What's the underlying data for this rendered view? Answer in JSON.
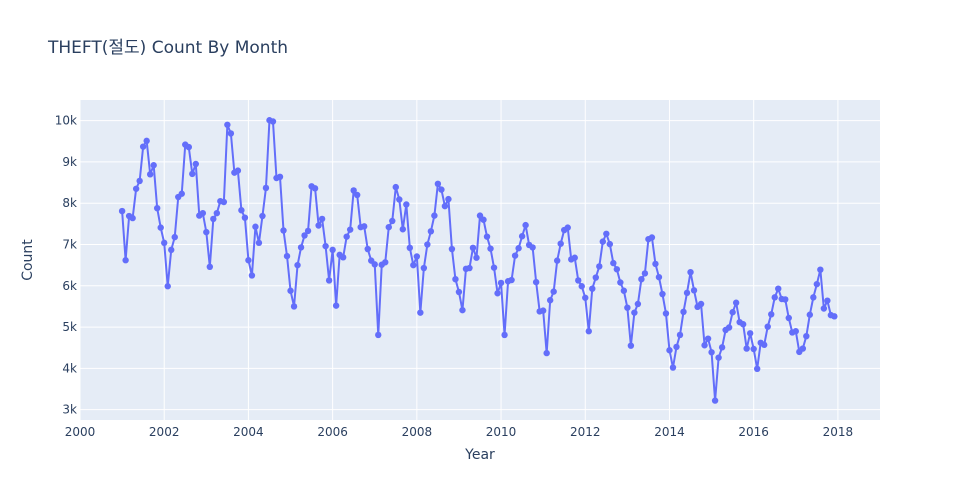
{
  "chart_data": {
    "type": "line",
    "title": "THEFT(절도) Count By Month",
    "xlabel": "Year",
    "ylabel": "Count",
    "x_ticks": [
      "2000",
      "2002",
      "2004",
      "2006",
      "2008",
      "2010",
      "2012",
      "2014",
      "2016",
      "2018"
    ],
    "y_ticks": [
      "3k",
      "4k",
      "5k",
      "6k",
      "7k",
      "8k",
      "9k",
      "10k"
    ],
    "xlim": [
      2000,
      2019
    ],
    "ylim": [
      2750,
      10500
    ],
    "grid": true,
    "mode": "lines+markers",
    "start": "2001-01",
    "series": [
      {
        "color": "#636efa",
        "values": [
          7810,
          6620,
          7690,
          7640,
          8350,
          8540,
          9370,
          9510,
          8700,
          8920,
          7880,
          7410,
          7040,
          5990,
          6870,
          7180,
          8150,
          8230,
          9420,
          9360,
          8710,
          8950,
          7700,
          7760,
          7300,
          6460,
          7620,
          7760,
          8050,
          8030,
          9900,
          9690,
          8740,
          8790,
          7830,
          7650,
          6620,
          6250,
          7430,
          7040,
          7690,
          8370,
          10010,
          9980,
          8610,
          8640,
          7340,
          6720,
          5880,
          5500,
          6500,
          6930,
          7220,
          7330,
          8410,
          8360,
          7460,
          7620,
          6960,
          6130,
          6870,
          5520,
          6750,
          6690,
          7190,
          7360,
          8310,
          8200,
          7420,
          7440,
          6890,
          6610,
          6520,
          4810,
          6510,
          6570,
          7420,
          7570,
          8390,
          8090,
          7370,
          7970,
          6920,
          6500,
          6710,
          5350,
          6430,
          7000,
          7320,
          7700,
          8470,
          8330,
          7930,
          8100,
          6890,
          6160,
          5850,
          5410,
          6410,
          6430,
          6920,
          6680,
          7700,
          7600,
          7190,
          6900,
          6440,
          5820,
          6070,
          4810,
          6110,
          6140,
          6730,
          6910,
          7200,
          7470,
          6990,
          6930,
          6090,
          5380,
          5400,
          4370,
          5650,
          5860,
          6610,
          7020,
          7350,
          7410,
          6640,
          6680,
          6130,
          5990,
          5710,
          4900,
          5930,
          6200,
          6470,
          7070,
          7260,
          7010,
          6550,
          6400,
          6080,
          5880,
          5470,
          4550,
          5350,
          5560,
          6160,
          6300,
          7130,
          7170,
          6530,
          6210,
          5800,
          5330,
          4440,
          4020,
          4520,
          4810,
          5370,
          5830,
          6330,
          5890,
          5490,
          5560,
          4560,
          4720,
          4390,
          3220,
          4260,
          4510,
          4930,
          4990,
          5360,
          5590,
          5120,
          5070,
          4480,
          4850,
          4470,
          3990,
          4620,
          4570,
          5010,
          5310,
          5720,
          5930,
          5680,
          5670,
          5220,
          4870,
          4900,
          4400,
          4480,
          4780,
          5300,
          5720,
          6040,
          6390,
          5450,
          5640,
          5290,
          5260
        ]
      }
    ]
  }
}
